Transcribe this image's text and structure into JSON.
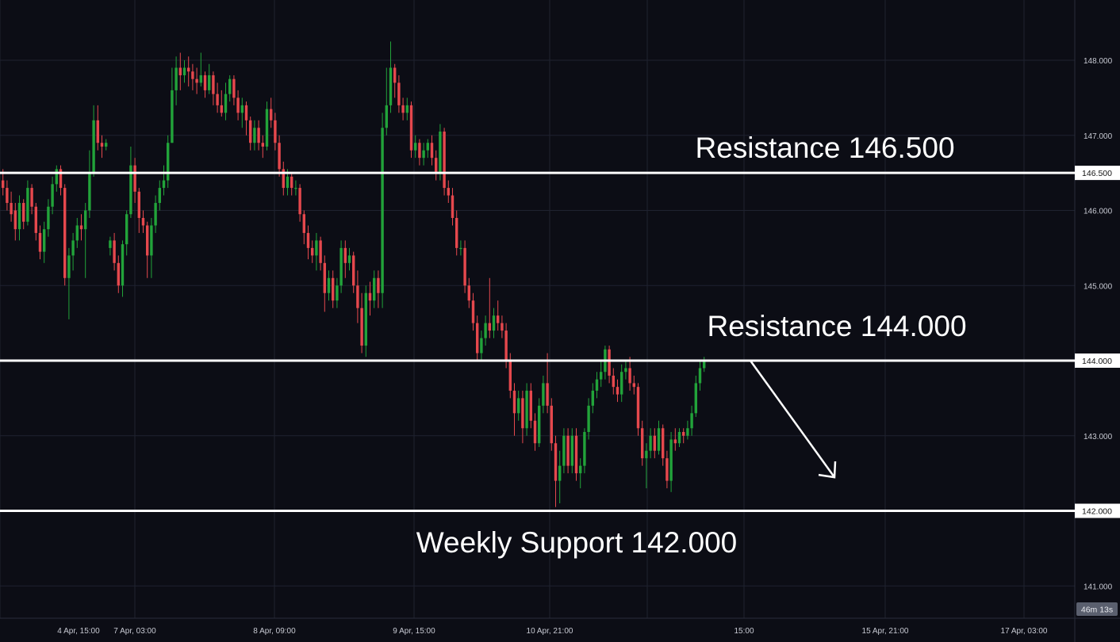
{
  "colors": {
    "background": "#0c0d15",
    "grid": "#1f2230",
    "up": "#22a33a",
    "down": "#e5484d",
    "level_line": "#ffffff",
    "axis_text": "#c8cad3",
    "countdown_bg": "#5a5f6e"
  },
  "countdown": "46m 13s",
  "chart_data": {
    "type": "candlestick",
    "title": "",
    "xlabel": "",
    "ylabel": "",
    "ylim": [
      140.6,
      148.55
    ],
    "y_ticks": [
      "148.000",
      "147.000",
      "146.000",
      "145.000",
      "143.000",
      "141.000"
    ],
    "x_tick_labels": [
      "4 Apr, 15:00",
      "7 Apr, 03:00",
      "8 Apr, 09:00",
      "9 Apr, 15:00",
      "10 Apr, 21:00",
      "15:00",
      "15 Apr, 21:00",
      "17 Apr, 03:00"
    ],
    "grid": true,
    "levels": [
      {
        "value": 146.5,
        "axis_label": "146.500",
        "text": "Resistance 146.500"
      },
      {
        "value": 144.0,
        "axis_label": "144.000",
        "text": "Resistance 144.000"
      },
      {
        "value": 142.0,
        "axis_label": "142.000",
        "text": "Weekly Support 142.000"
      }
    ],
    "projection": {
      "from": 144.0,
      "to": 142.5,
      "direction": "down"
    },
    "candles": [
      [
        146.4,
        146.3,
        146.55,
        146.2
      ],
      [
        146.3,
        146.1,
        146.4,
        146.0
      ],
      [
        146.1,
        145.95,
        146.25,
        145.85
      ],
      [
        146.0,
        145.75,
        146.1,
        145.6
      ],
      [
        145.75,
        146.1,
        146.2,
        145.6
      ],
      [
        146.1,
        145.85,
        146.15,
        145.75
      ],
      [
        145.85,
        146.3,
        146.4,
        145.8
      ],
      [
        146.3,
        146.05,
        146.35,
        145.95
      ],
      [
        146.05,
        145.7,
        146.1,
        145.6
      ],
      [
        145.7,
        145.45,
        145.8,
        145.35
      ],
      [
        145.45,
        145.75,
        145.85,
        145.3
      ],
      [
        145.75,
        146.05,
        146.15,
        145.65
      ],
      [
        146.05,
        146.35,
        146.45,
        145.95
      ],
      [
        146.35,
        146.55,
        146.6,
        146.25
      ],
      [
        146.55,
        146.3,
        146.6,
        146.2
      ],
      [
        146.3,
        145.1,
        146.35,
        145.0
      ],
      [
        145.1,
        145.4,
        145.5,
        144.55
      ],
      [
        145.4,
        145.6,
        145.7,
        145.2
      ],
      [
        145.6,
        145.8,
        145.9,
        145.5
      ],
      [
        145.8,
        145.75,
        145.95,
        145.6
      ],
      [
        145.75,
        146.0,
        146.1,
        145.1
      ],
      [
        146.0,
        146.5,
        146.8,
        145.9
      ],
      [
        146.5,
        147.2,
        147.4,
        146.45
      ],
      [
        147.2,
        146.9,
        147.4,
        146.8
      ],
      [
        146.9,
        146.85,
        147.0,
        146.7
      ],
      [
        146.85,
        146.9,
        146.95,
        146.8
      ],
      [
        145.5,
        145.6,
        145.65,
        145.4
      ],
      [
        145.6,
        145.3,
        145.7,
        145.2
      ],
      [
        145.3,
        145.0,
        145.4,
        144.9
      ],
      [
        145.0,
        145.55,
        145.6,
        144.85
      ],
      [
        145.55,
        145.95,
        146.0,
        145.4
      ],
      [
        145.95,
        146.6,
        146.85,
        145.9
      ],
      [
        146.6,
        146.25,
        146.7,
        146.1
      ],
      [
        146.25,
        145.9,
        146.3,
        145.7
      ],
      [
        145.9,
        145.8,
        146.0,
        145.7
      ],
      [
        145.8,
        145.4,
        145.85,
        145.1
      ],
      [
        145.4,
        145.8,
        145.9,
        145.1
      ],
      [
        145.8,
        146.1,
        146.2,
        145.7
      ],
      [
        146.1,
        146.3,
        146.4,
        146.0
      ],
      [
        146.3,
        146.4,
        146.6,
        146.2
      ],
      [
        146.4,
        146.9,
        147.0,
        146.3
      ],
      [
        146.9,
        147.6,
        147.9,
        146.9
      ],
      [
        147.6,
        147.9,
        148.05,
        147.4
      ],
      [
        147.9,
        147.8,
        148.1,
        147.6
      ],
      [
        147.8,
        147.9,
        148.0,
        147.7
      ],
      [
        147.9,
        147.85,
        148.05,
        147.65
      ],
      [
        147.85,
        147.75,
        147.95,
        147.6
      ],
      [
        147.75,
        147.7,
        147.9,
        147.55
      ],
      [
        147.7,
        147.8,
        148.1,
        147.65
      ],
      [
        147.8,
        147.6,
        147.85,
        147.5
      ],
      [
        147.6,
        147.8,
        147.95,
        147.55
      ],
      [
        147.8,
        147.55,
        147.85,
        147.4
      ],
      [
        147.55,
        147.4,
        147.7,
        147.3
      ],
      [
        147.4,
        147.3,
        147.6,
        147.25
      ],
      [
        147.3,
        147.55,
        147.7,
        147.2
      ],
      [
        147.55,
        147.75,
        147.8,
        147.45
      ],
      [
        147.75,
        147.5,
        147.8,
        147.4
      ],
      [
        147.5,
        147.3,
        147.6,
        147.2
      ],
      [
        147.3,
        147.4,
        147.5,
        147.1
      ],
      [
        147.4,
        147.2,
        147.45,
        147.0
      ],
      [
        147.2,
        146.9,
        147.25,
        146.8
      ],
      [
        146.9,
        147.1,
        147.2,
        146.8
      ],
      [
        147.1,
        146.9,
        147.2,
        146.8
      ],
      [
        146.9,
        146.85,
        147.0,
        146.7
      ],
      [
        146.85,
        147.35,
        147.45,
        146.8
      ],
      [
        147.35,
        147.2,
        147.5,
        147.1
      ],
      [
        147.2,
        146.9,
        147.3,
        146.8
      ],
      [
        146.9,
        146.55,
        147.0,
        146.45
      ],
      [
        146.55,
        146.3,
        146.65,
        146.2
      ],
      [
        146.3,
        146.45,
        146.55,
        146.2
      ],
      [
        146.45,
        146.3,
        146.5,
        146.2
      ],
      [
        146.3,
        146.3,
        146.4,
        146.2
      ],
      [
        146.3,
        145.95,
        146.35,
        145.85
      ],
      [
        145.95,
        145.7,
        146.0,
        145.55
      ],
      [
        145.7,
        145.5,
        145.8,
        145.35
      ],
      [
        145.5,
        145.4,
        145.6,
        145.3
      ],
      [
        145.4,
        145.6,
        145.7,
        145.2
      ],
      [
        145.6,
        145.3,
        145.65,
        145.2
      ],
      [
        145.3,
        144.9,
        145.4,
        144.65
      ],
      [
        144.9,
        145.1,
        145.2,
        144.8
      ],
      [
        145.1,
        144.8,
        145.2,
        144.7
      ],
      [
        144.8,
        145.0,
        145.1,
        144.7
      ],
      [
        145.0,
        145.5,
        145.6,
        144.9
      ],
      [
        145.5,
        145.3,
        145.6,
        145.1
      ],
      [
        145.3,
        145.4,
        145.5,
        145.2
      ],
      [
        145.4,
        145.0,
        145.45,
        144.9
      ],
      [
        145.0,
        144.7,
        145.2,
        144.5
      ],
      [
        144.7,
        144.2,
        144.9,
        144.1
      ],
      [
        144.2,
        144.9,
        145.0,
        144.05
      ],
      [
        144.9,
        144.8,
        145.05,
        144.6
      ],
      [
        144.8,
        145.1,
        145.2,
        144.7
      ],
      [
        145.1,
        144.9,
        145.2,
        144.7
      ],
      [
        144.9,
        147.1,
        147.3,
        144.7
      ],
      [
        147.1,
        147.4,
        147.9,
        147.0
      ],
      [
        147.4,
        147.9,
        148.25,
        147.3
      ],
      [
        147.9,
        147.7,
        147.95,
        147.5
      ],
      [
        147.7,
        147.4,
        147.8,
        147.3
      ],
      [
        147.4,
        147.3,
        147.5,
        147.2
      ],
      [
        147.3,
        147.4,
        147.5,
        147.2
      ],
      [
        147.4,
        146.8,
        147.45,
        146.7
      ],
      [
        146.8,
        146.9,
        147.0,
        146.7
      ],
      [
        146.9,
        146.7,
        146.95,
        146.6
      ],
      [
        146.7,
        146.8,
        146.9,
        146.6
      ],
      [
        146.8,
        146.9,
        146.95,
        146.7
      ],
      [
        146.9,
        146.7,
        147.0,
        146.6
      ],
      [
        146.7,
        146.5,
        146.8,
        146.4
      ],
      [
        146.5,
        147.05,
        147.15,
        146.4
      ],
      [
        147.05,
        146.3,
        147.1,
        146.2
      ],
      [
        146.3,
        146.2,
        146.4,
        146.1
      ],
      [
        146.2,
        145.9,
        146.3,
        145.8
      ],
      [
        145.9,
        145.5,
        146.0,
        145.4
      ],
      [
        145.5,
        145.5,
        145.6,
        145.4
      ],
      [
        145.5,
        145.0,
        145.6,
        144.9
      ],
      [
        145.0,
        144.8,
        145.1,
        144.7
      ],
      [
        144.8,
        144.5,
        144.9,
        144.4
      ],
      [
        144.5,
        144.1,
        144.6,
        144.0
      ],
      [
        144.1,
        144.3,
        144.4,
        144.0
      ],
      [
        144.3,
        144.5,
        144.6,
        144.2
      ],
      [
        144.5,
        144.4,
        145.1,
        144.3
      ],
      [
        144.4,
        144.6,
        144.7,
        144.3
      ],
      [
        144.6,
        144.5,
        144.8,
        144.4
      ],
      [
        144.5,
        144.4,
        144.6,
        144.3
      ],
      [
        144.4,
        144.0,
        144.5,
        143.9
      ],
      [
        144.0,
        143.6,
        144.1,
        143.5
      ],
      [
        143.6,
        143.3,
        143.7,
        143.0
      ],
      [
        143.3,
        143.5,
        143.6,
        143.2
      ],
      [
        143.5,
        143.1,
        143.6,
        142.9
      ],
      [
        143.1,
        143.6,
        143.7,
        143.0
      ],
      [
        143.6,
        143.2,
        143.7,
        143.1
      ],
      [
        143.2,
        142.9,
        143.3,
        142.8
      ],
      [
        142.9,
        143.4,
        143.5,
        142.85
      ],
      [
        143.4,
        143.7,
        143.8,
        143.3
      ],
      [
        143.7,
        143.4,
        144.1,
        143.3
      ],
      [
        143.4,
        142.9,
        143.5,
        142.8
      ],
      [
        142.9,
        142.4,
        143.0,
        142.05
      ],
      [
        142.4,
        142.6,
        142.8,
        142.1
      ],
      [
        142.6,
        143.0,
        143.1,
        142.5
      ],
      [
        143.0,
        142.6,
        143.1,
        142.5
      ],
      [
        142.6,
        143.0,
        143.1,
        142.5
      ],
      [
        143.0,
        142.5,
        143.1,
        142.4
      ],
      [
        142.5,
        142.6,
        142.7,
        142.3
      ],
      [
        142.6,
        143.05,
        143.1,
        142.5
      ],
      [
        143.05,
        143.4,
        143.5,
        142.95
      ],
      [
        143.4,
        143.6,
        143.7,
        143.3
      ],
      [
        143.6,
        143.75,
        143.85,
        143.5
      ],
      [
        143.75,
        143.85,
        144.0,
        143.65
      ],
      [
        143.85,
        144.15,
        144.2,
        143.75
      ],
      [
        144.15,
        143.8,
        144.2,
        143.7
      ],
      [
        143.8,
        143.65,
        143.9,
        143.55
      ],
      [
        143.65,
        143.55,
        143.75,
        143.45
      ],
      [
        143.55,
        143.85,
        143.95,
        143.45
      ],
      [
        143.85,
        143.9,
        144.0,
        143.75
      ],
      [
        143.9,
        143.7,
        144.05,
        143.6
      ],
      [
        143.7,
        143.65,
        143.8,
        143.55
      ],
      [
        143.65,
        143.1,
        143.7,
        143.0
      ],
      [
        143.1,
        142.7,
        143.2,
        142.6
      ],
      [
        142.7,
        142.8,
        142.9,
        142.3
      ],
      [
        142.8,
        143.0,
        143.1,
        142.7
      ],
      [
        143.0,
        142.8,
        143.1,
        142.7
      ],
      [
        142.8,
        143.1,
        143.2,
        142.75
      ],
      [
        143.1,
        142.7,
        143.15,
        142.6
      ],
      [
        142.7,
        142.4,
        142.8,
        142.3
      ],
      [
        142.4,
        142.95,
        143.05,
        142.25
      ],
      [
        142.95,
        142.9,
        143.1,
        142.8
      ],
      [
        142.9,
        143.05,
        143.1,
        142.85
      ],
      [
        143.05,
        143.0,
        143.1,
        142.9
      ],
      [
        143.0,
        143.1,
        143.2,
        142.95
      ],
      [
        143.1,
        143.3,
        143.4,
        143.0
      ],
      [
        143.3,
        143.7,
        143.8,
        143.25
      ],
      [
        143.7,
        143.9,
        144.0,
        143.6
      ],
      [
        143.9,
        144.0,
        144.05,
        143.85
      ]
    ]
  }
}
